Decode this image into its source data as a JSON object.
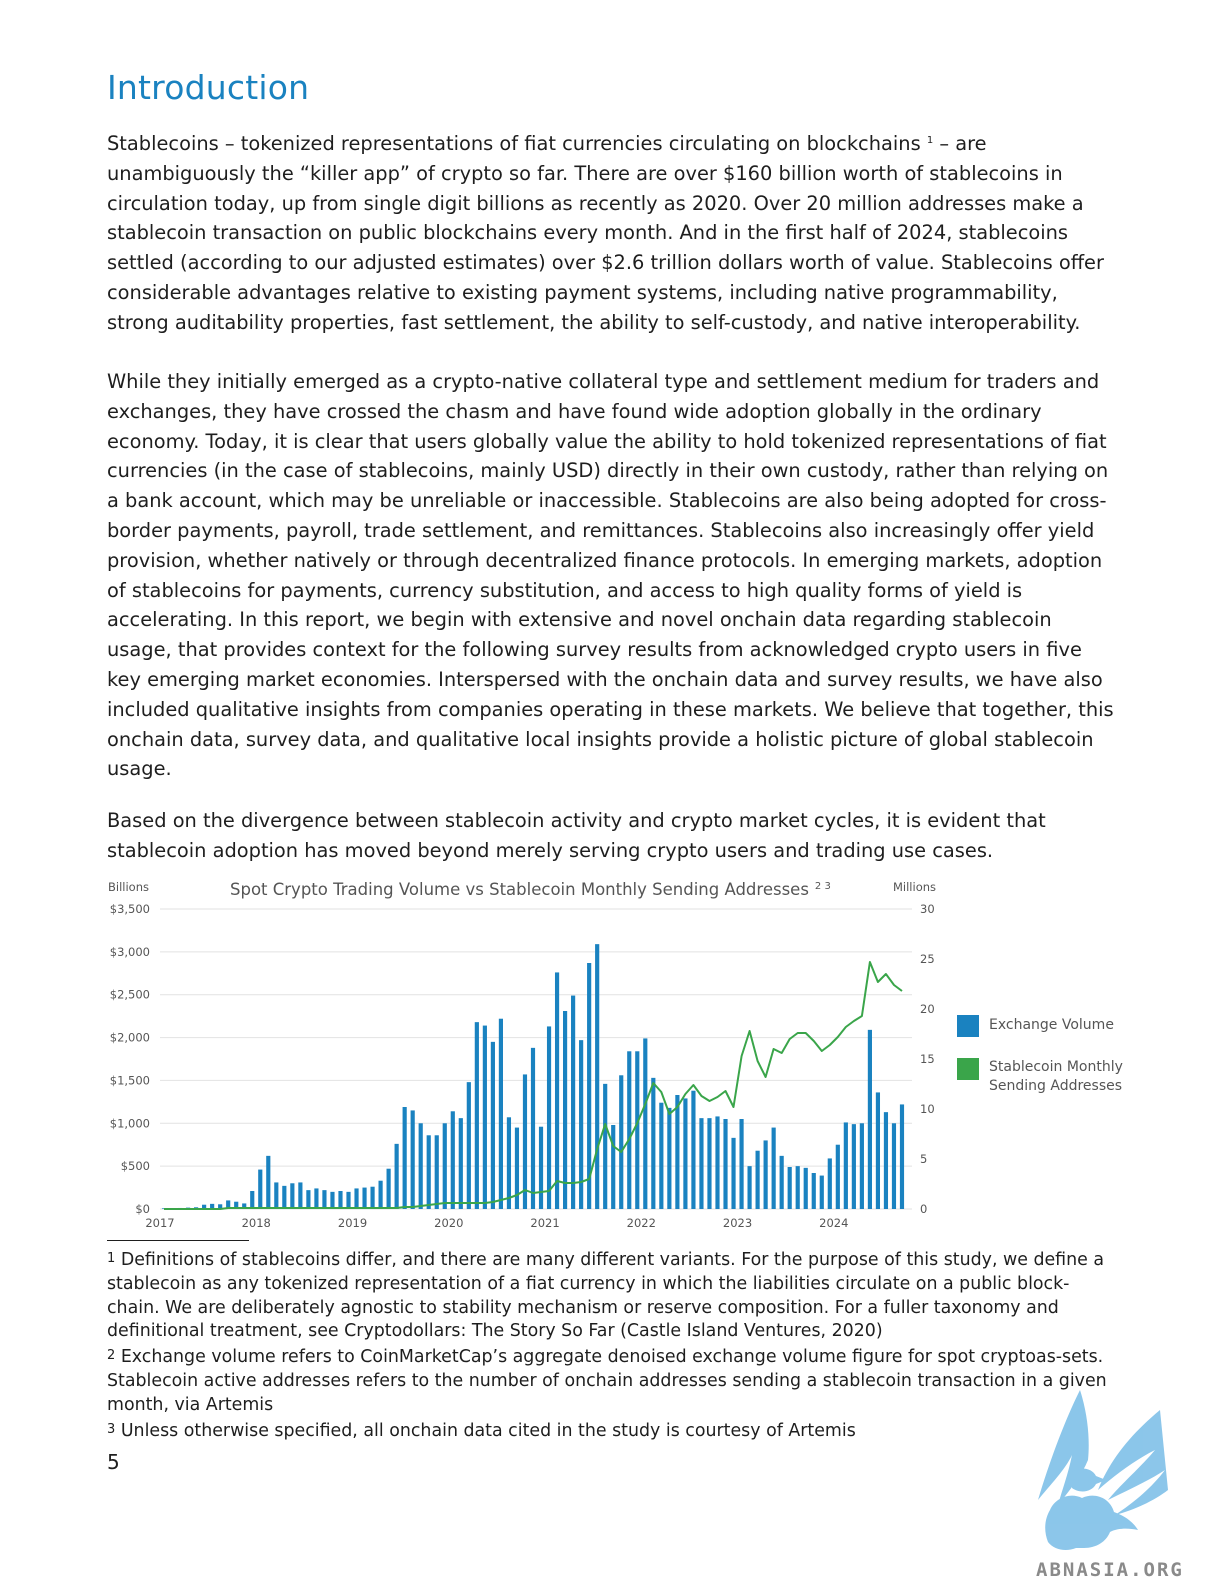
{
  "page": {
    "title": "Introduction",
    "paragraphs": [
      {
        "before": "Stablecoins – tokenized representations of fiat currencies circulating on blockchains ",
        "footnote_ref": "1",
        "after": " – are unambiguously the “killer app” of crypto so far. There are over $160 billion worth of stablecoins in circulation today, up from single digit billions as recently as 2020. Over 20 million addresses make a stablecoin transaction on public blockchains every month. And in the first half of 2024, stablecoins settled (according to our adjusted estimates) over $2.6 trillion dollars worth of value. Stablecoins offer considerable advantages relative to existing payment systems, including native programmability, strong auditability properties, fast settlement, the ability to self-custody, and native interoperability."
      },
      {
        "text": "While they initially emerged as a crypto-native collateral type and settlement medium for traders and exchanges, they have crossed the chasm and have found wide adoption globally in the ordinary economy. Today, it is clear that users globally value the ability to hold tokenized representations of fiat currencies (in the case of stablecoins, mainly USD) directly in their own custody, rather than relying on a bank account, which may be unreliable or inaccessible. Stablecoins are also being adopted for cross-border payments, payroll, trade settlement, and remittances. Stablecoins also increasingly offer yield provision, whether natively or through decentralized finance protocols. In emerging markets, adoption of stablecoins for payments, currency substitution, and access to high quality forms of yield is accelerating. In this report, we begin with extensive and novel onchain data regarding stablecoin usage, that provides context for the following survey results from acknowledged crypto users in five key emerging market economies. Interspersed with the onchain data and survey results, we have also included qualitative insights from companies operating in these markets. We believe that together, this onchain data, survey data, and qualitative local insights provide a holistic picture of global stablecoin usage."
      },
      {
        "text": "Based on the divergence between stablecoin activity and crypto market cycles, it is evident that stablecoin adoption has moved beyond merely serving crypto users and trading use cases."
      }
    ],
    "footnotes": [
      {
        "mark": "1",
        "text": "Definitions of stablecoins differ, and there are many different variants. For the purpose of this study, we define a stablecoin as any tokenized representation of a fiat currency in which the liabilities circulate on a public block-chain. We are deliberately agnostic to stability mechanism or reserve composition. For a fuller taxonomy and definitional treatment, see Cryptodollars: The Story So Far (Castle Island Ventures, 2020)"
      },
      {
        "mark": "2",
        "text": "Exchange volume refers to CoinMarketCap’s aggregate denoised exchange volume figure for spot cryptoas-sets. Stablecoin active addresses refers to the number of onchain addresses sending a stablecoin transaction in a given month, via Artemis"
      },
      {
        "mark": "3",
        "text": "Unless otherwise specified, all onchain data cited in the study is courtesy of Artemis"
      }
    ],
    "page_number": "5",
    "watermark_text": "ABNASIA.ORG",
    "colors": {
      "title": "#1a82c0",
      "bar": "#1a82c0",
      "line": "#3aa54a",
      "grid": "#e2e2e2",
      "watermark": "#7fc0e8"
    }
  },
  "chart_data": {
    "type": "bar",
    "title": "Spot Crypto Trading Volume vs Stablecoin Monthly Sending Addresses",
    "title_refs": "2 3",
    "y_left_label": "Billions",
    "y_right_label": "Millions",
    "y_left_ticks": [
      "$0",
      "$500",
      "$1,000",
      "$1,500",
      "$2,000",
      "$2,500",
      "$3,000",
      "$3,500"
    ],
    "y_right_ticks": [
      "0",
      "5",
      "10",
      "15",
      "20",
      "25",
      "30"
    ],
    "ylim_left": [
      0,
      3500
    ],
    "ylim_right": [
      0,
      30
    ],
    "x_ticks": [
      "2017",
      "2018",
      "2019",
      "2020",
      "2021",
      "2022",
      "2023",
      "2024"
    ],
    "x_start": "2017-01",
    "legend_position": "right",
    "grid": true,
    "series": [
      {
        "name": "Exchange Volume",
        "type": "bar",
        "axis": "left",
        "values": [
          8,
          10,
          12,
          16,
          20,
          50,
          60,
          55,
          100,
          85,
          65,
          210,
          460,
          620,
          310,
          270,
          300,
          310,
          220,
          240,
          220,
          200,
          210,
          200,
          240,
          250,
          260,
          330,
          470,
          760,
          1190,
          1150,
          1000,
          860,
          860,
          1000,
          1140,
          1060,
          1480,
          2180,
          2140,
          1950,
          2220,
          1070,
          950,
          1570,
          1880,
          960,
          2130,
          2760,
          2310,
          2490,
          1970,
          2870,
          3090,
          1460,
          980,
          1560,
          1840,
          1840,
          1990,
          1530,
          1240,
          1180,
          1330,
          1290,
          1380,
          1060,
          1060,
          1080,
          1050,
          830,
          1050,
          500,
          680,
          800,
          950,
          620,
          490,
          500,
          480,
          420,
          390,
          590,
          750,
          1010,
          990,
          1000,
          2090,
          1360,
          1130,
          1000,
          1220
        ]
      },
      {
        "name": "Stablecoin Monthly Sending Addresses",
        "type": "line",
        "axis": "right",
        "values": [
          0,
          0,
          0,
          0,
          0,
          0,
          0,
          0,
          0.1,
          0.1,
          0.1,
          0.1,
          0.1,
          0.1,
          0.1,
          0.1,
          0.1,
          0.1,
          0.1,
          0.1,
          0.1,
          0.1,
          0.1,
          0.1,
          0.1,
          0.1,
          0.1,
          0.1,
          0.1,
          0.1,
          0.2,
          0.2,
          0.3,
          0.4,
          0.5,
          0.6,
          0.6,
          0.6,
          0.6,
          0.6,
          0.6,
          0.7,
          0.9,
          1.1,
          1.4,
          1.9,
          1.6,
          1.7,
          1.8,
          2.8,
          2.6,
          2.6,
          2.7,
          3.0,
          6.0,
          8.5,
          6.3,
          5.7,
          7.0,
          8.6,
          10.5,
          12.6,
          11.7,
          9.5,
          10.2,
          11.5,
          12.4,
          11.3,
          10.8,
          11.2,
          11.8,
          10.2,
          15.3,
          17.8,
          14.8,
          13.2,
          16.0,
          15.6,
          17.0,
          17.6,
          17.6,
          16.8,
          15.8,
          16.4,
          17.2,
          18.2,
          18.8,
          19.3,
          24.7,
          22.7,
          23.5,
          22.4,
          21.8
        ]
      }
    ]
  }
}
